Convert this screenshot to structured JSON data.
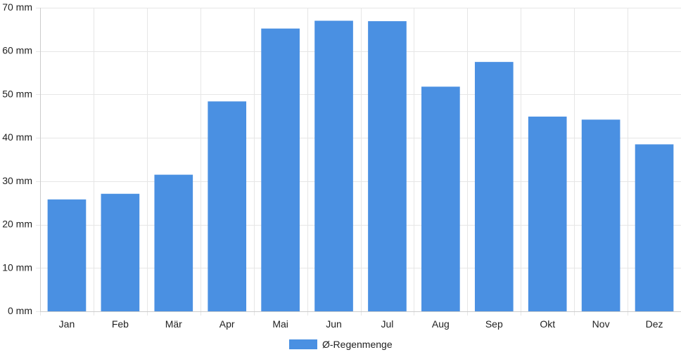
{
  "chart_data": {
    "type": "bar",
    "categories": [
      "Jan",
      "Feb",
      "Mär",
      "Apr",
      "Mai",
      "Jun",
      "Jul",
      "Aug",
      "Sep",
      "Okt",
      "Nov",
      "Dez"
    ],
    "series": [
      {
        "name": "Ø-Regenmenge",
        "values": [
          25.8,
          27.1,
          31.5,
          48.4,
          65.2,
          67.0,
          66.9,
          51.8,
          57.5,
          44.9,
          44.2,
          38.5
        ],
        "color": "#4a90e2"
      }
    ],
    "ylim": [
      0,
      70
    ],
    "yticks": [
      0,
      10,
      20,
      30,
      40,
      50,
      60,
      70
    ],
    "y_unit_suffix": " mm",
    "grid": true,
    "legend_position": "bottom-center",
    "grid_color": "#e6e6e6",
    "axis_color": "#cccccc"
  }
}
